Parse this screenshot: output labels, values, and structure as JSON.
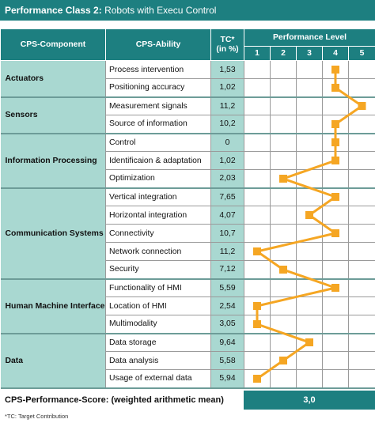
{
  "header": {
    "prefix": "Performance Class 2:",
    "title": "Robots with Execu Control"
  },
  "columns": {
    "component": "CPS-Component",
    "ability": "CPS-Ability",
    "tc": "TC*\n(in %)",
    "performance": "Performance Level"
  },
  "levels": [
    "1",
    "2",
    "3",
    "4",
    "5"
  ],
  "groups": [
    {
      "name": "Actuators",
      "rows": [
        {
          "ability": "Process intervention",
          "tc": "1,53",
          "level": 4
        },
        {
          "ability": "Positioning accuracy",
          "tc": "1,02",
          "level": 4
        }
      ]
    },
    {
      "name": "Sensors",
      "rows": [
        {
          "ability": "Measurement signals",
          "tc": "11,2",
          "level": 5
        },
        {
          "ability": "Source of information",
          "tc": "10,2",
          "level": 4
        }
      ]
    },
    {
      "name": "Information Processing",
      "rows": [
        {
          "ability": "Control",
          "tc": "0",
          "level": 4
        },
        {
          "ability": "Identificaion & adaptation",
          "tc": "1,02",
          "level": 4
        },
        {
          "ability": "Optimization",
          "tc": "2,03",
          "level": 2
        }
      ]
    },
    {
      "name": "Communication Systems",
      "rows": [
        {
          "ability": "Vertical integration",
          "tc": "7,65",
          "level": 4
        },
        {
          "ability": "Horizontal integration",
          "tc": "4,07",
          "level": 3
        },
        {
          "ability": "Connectivity",
          "tc": "10,7",
          "level": 4
        },
        {
          "ability": "Network connection",
          "tc": "11,2",
          "level": 1
        },
        {
          "ability": "Security",
          "tc": "7,12",
          "level": 2
        }
      ]
    },
    {
      "name": "Human Machine Interface",
      "rows": [
        {
          "ability": "Functionality of HMI",
          "tc": "5,59",
          "level": 4
        },
        {
          "ability": "Location of HMI",
          "tc": "2,54",
          "level": 1
        },
        {
          "ability": "Multimodality",
          "tc": "3,05",
          "level": 1
        }
      ]
    },
    {
      "name": "Data",
      "rows": [
        {
          "ability": "Data storage",
          "tc": "9,64",
          "level": 3
        },
        {
          "ability": "Data analysis",
          "tc": "5,58",
          "level": 2
        },
        {
          "ability": "Usage of external data",
          "tc": "5,94",
          "level": 1
        }
      ]
    }
  ],
  "score": {
    "label": "CPS-Performance-Score: (weighted arithmetic mean)",
    "value": "3,0"
  },
  "footnote": "*TC: Target Contribution",
  "colors": {
    "teal": "#1d7f80",
    "light_teal": "#a9d8d1",
    "marker": "#f5a623"
  }
}
